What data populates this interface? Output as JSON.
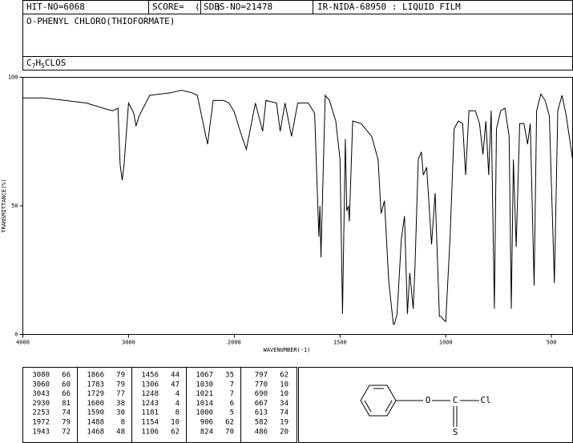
{
  "header": {
    "hit_no": "HIT-NO=6068",
    "score": "SCORE=  (   )",
    "sdbs_no": "SDBS-NO=21478",
    "method": "IR-NIDA-68950 : LIQUID FILM"
  },
  "compound": "O-PHENYL CHLORO(THIOFORMATE)",
  "formula": [
    "C",
    "7",
    "H",
    "5",
    "CLOS"
  ],
  "chart_data": {
    "type": "line",
    "xlabel": "WAVENUMBER(-1)",
    "ylabel": "TRANSMITTANCE(%)",
    "xlim": [
      4000,
      400
    ],
    "ylim": [
      0,
      100
    ],
    "xscale_change": 2000,
    "xscale_ratio": 2,
    "xticks": [
      4000,
      3000,
      2000,
      1500,
      1000,
      500
    ],
    "yticks": [
      0,
      50,
      100
    ],
    "color": "#000000",
    "x": [
      4000,
      3800,
      3600,
      3400,
      3200,
      3150,
      3100,
      3080,
      3060,
      3043,
      3000,
      2950,
      2930,
      2900,
      2800,
      2700,
      2600,
      2500,
      2400,
      2350,
      2253,
      2200,
      2100,
      2050,
      2000,
      1972,
      1943,
      1900,
      1866,
      1850,
      1800,
      1783,
      1760,
      1729,
      1700,
      1650,
      1620,
      1600,
      1595,
      1590,
      1570,
      1550,
      1520,
      1500,
      1488,
      1475,
      1468,
      1460,
      1456,
      1440,
      1400,
      1350,
      1320,
      1306,
      1290,
      1270,
      1248,
      1243,
      1230,
      1210,
      1195,
      1181,
      1170,
      1154,
      1145,
      1130,
      1115,
      1106,
      1090,
      1067,
      1050,
      1030,
      1021,
      1014,
      1000,
      980,
      960,
      940,
      920,
      906,
      890,
      860,
      840,
      824,
      810,
      797,
      785,
      770,
      760,
      740,
      720,
      700,
      690,
      680,
      667,
      650,
      630,
      613,
      600,
      582,
      570,
      550,
      530,
      510,
      486,
      470,
      450,
      430,
      400
    ],
    "values": [
      92,
      92,
      91,
      90,
      87.5,
      87,
      88,
      66,
      60,
      66,
      90,
      86,
      81,
      85,
      93,
      93.5,
      94,
      95,
      94,
      93,
      74,
      91,
      91,
      90,
      86.5,
      79,
      72,
      90,
      79,
      91,
      90,
      79,
      90,
      77,
      90,
      90,
      86,
      38,
      50,
      30,
      93,
      91,
      83,
      68,
      8,
      76,
      48,
      50,
      44,
      83,
      82,
      77,
      68,
      47,
      52,
      21,
      4,
      4,
      8,
      37,
      46,
      8,
      24,
      10,
      27,
      68,
      71,
      62,
      65,
      35,
      55,
      7,
      7,
      6,
      5,
      37,
      80,
      83,
      82,
      62,
      87,
      87,
      82,
      70,
      83,
      62,
      87,
      10,
      80,
      87,
      88,
      77,
      10,
      68,
      34,
      82,
      82,
      74,
      82,
      19,
      87,
      93.5,
      91,
      85,
      20,
      87,
      93,
      85,
      68
    ]
  },
  "peak_table": {
    "rows": [
      [
        "3080",
        "66",
        "1866",
        "79",
        "1456",
        "44",
        "1067",
        "35",
        "797",
        "62"
      ],
      [
        "3060",
        "60",
        "1783",
        "79",
        "1306",
        "47",
        "1030",
        "7",
        "770",
        "10"
      ],
      [
        "3043",
        "66",
        "1729",
        "77",
        "1248",
        "4",
        "1021",
        "7",
        "690",
        "10"
      ],
      [
        "2930",
        "81",
        "1600",
        "38",
        "1243",
        "4",
        "1014",
        "6",
        "667",
        "34"
      ],
      [
        "2253",
        "74",
        "1590",
        "30",
        "1181",
        "8",
        "1000",
        "5",
        "613",
        "74"
      ],
      [
        "1972",
        "79",
        "1488",
        "8",
        "1154",
        "10",
        "906",
        "62",
        "582",
        "19"
      ],
      [
        "1943",
        "72",
        "1468",
        "48",
        "1106",
        "62",
        "824",
        "70",
        "486",
        "20"
      ]
    ]
  },
  "structure": {
    "atoms": [
      "O",
      "C",
      "Cl",
      "S"
    ]
  }
}
